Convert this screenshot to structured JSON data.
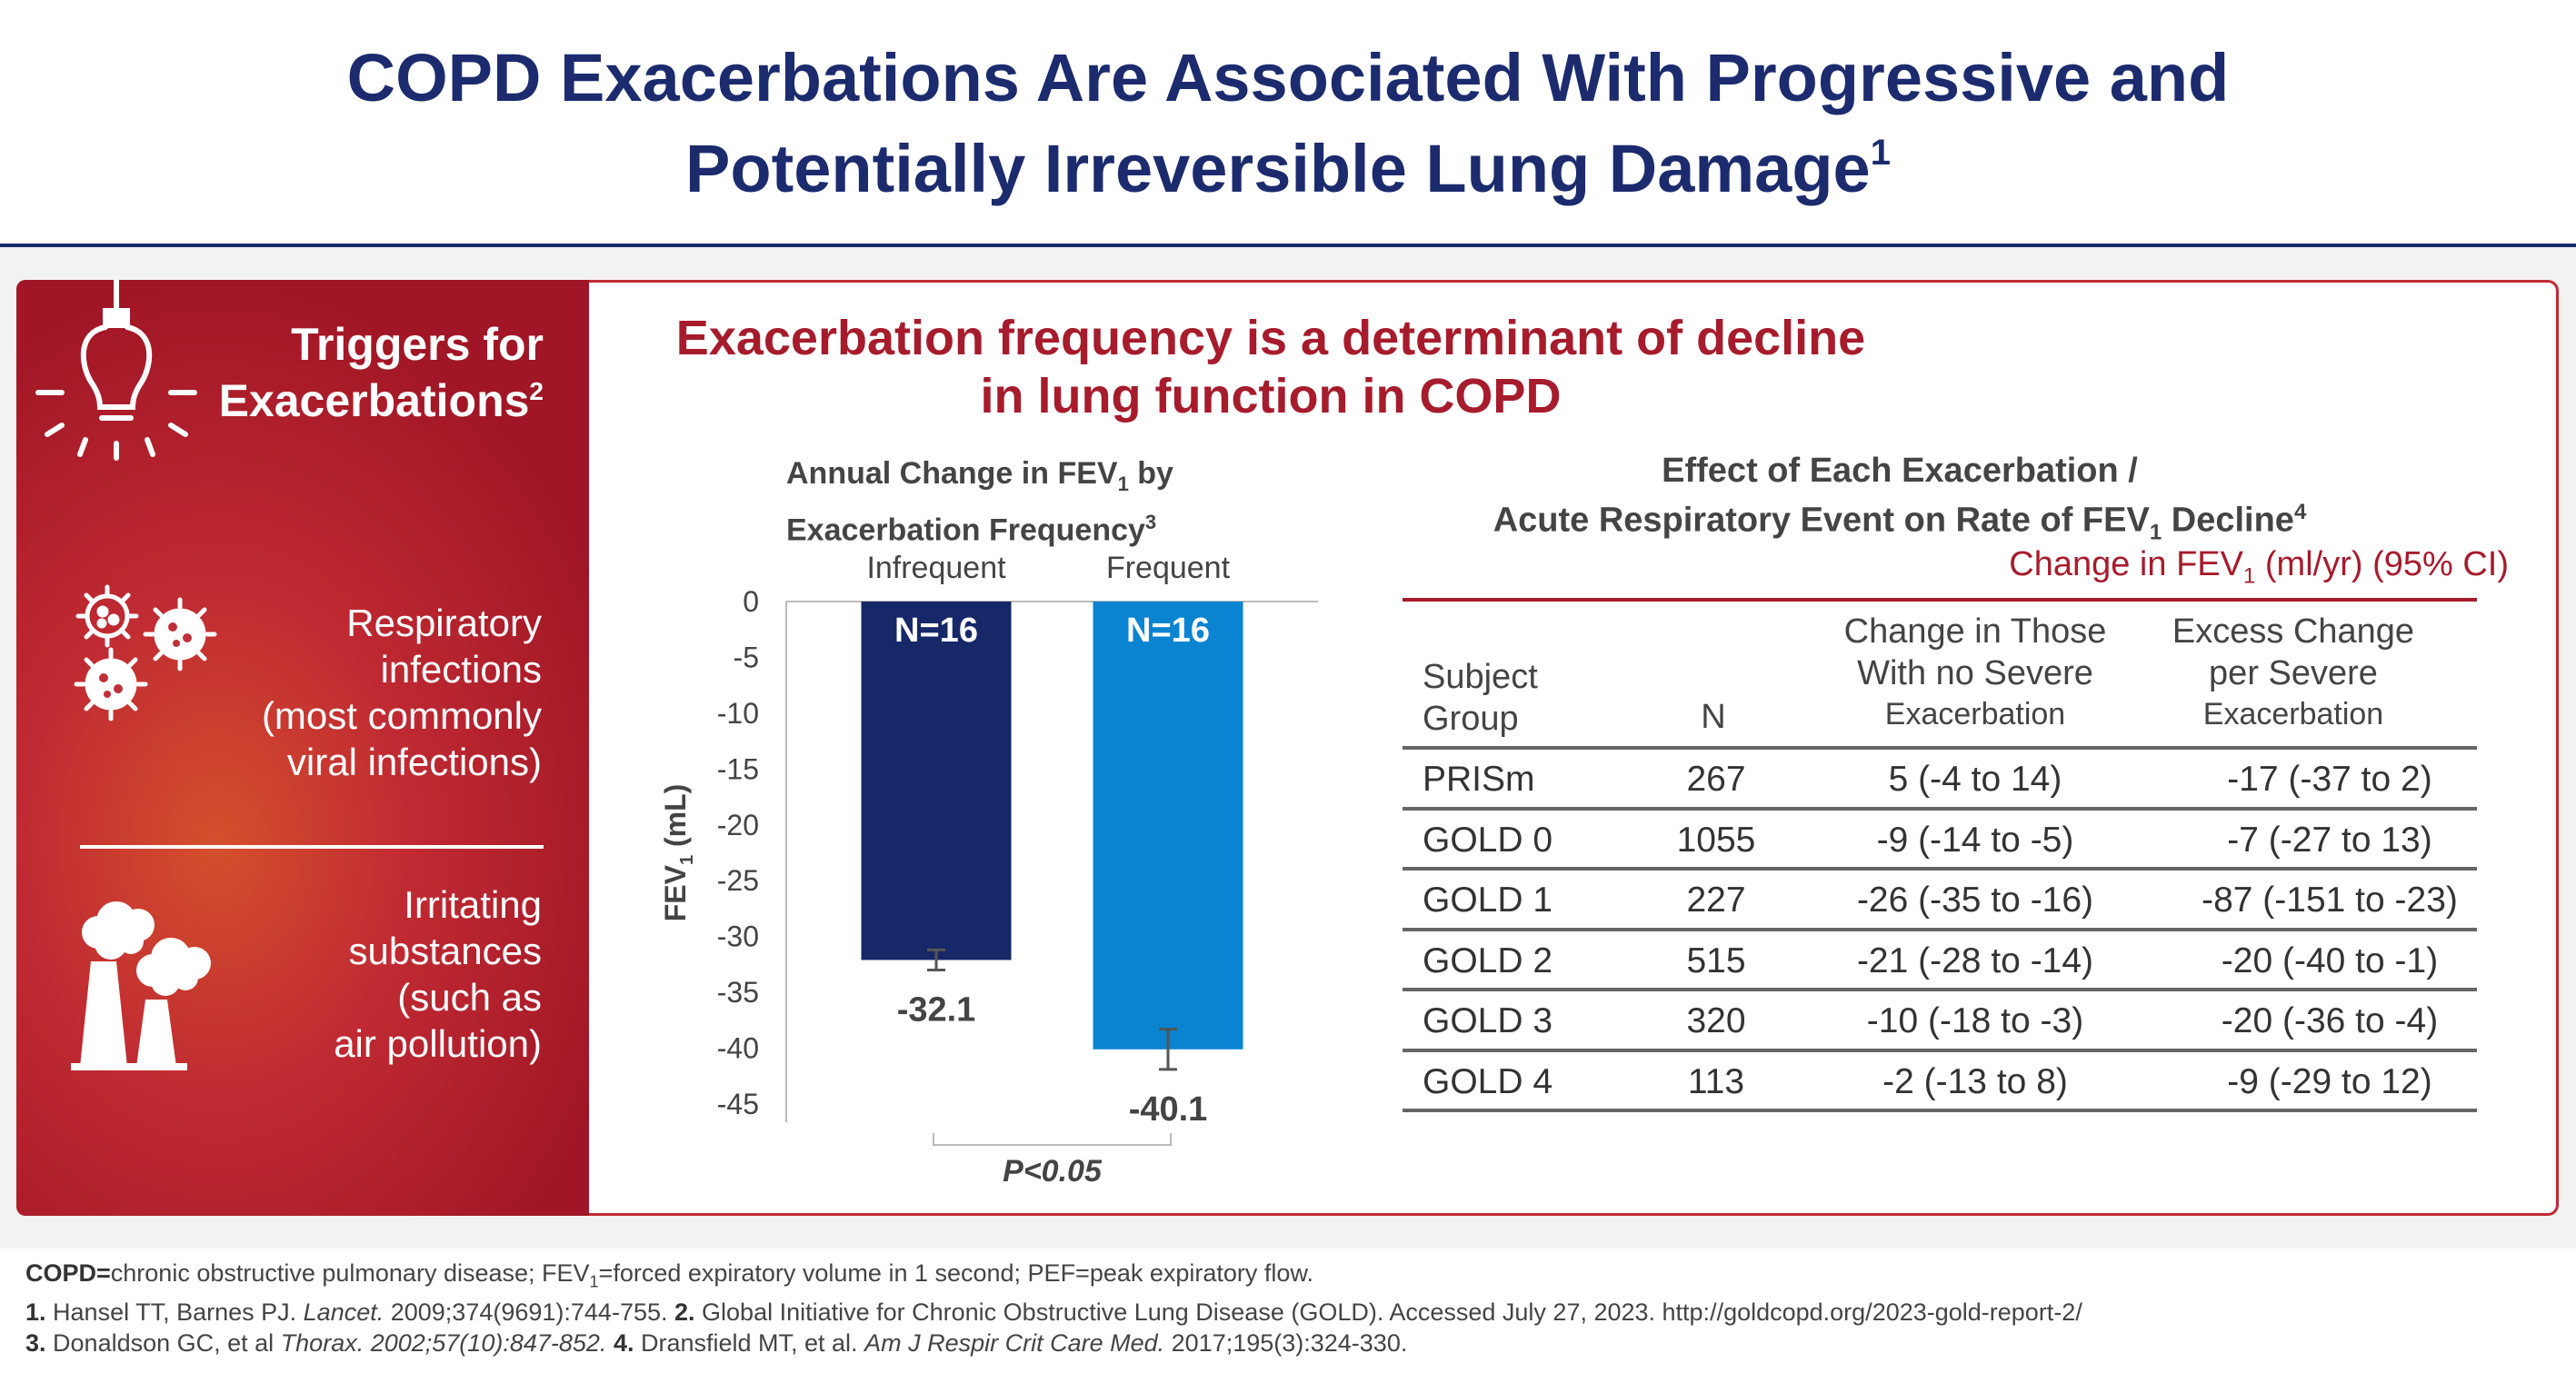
{
  "header": {
    "title_line1": "COPD Exacerbations Are Associated With Progressive and",
    "title_line2": "Potentially Irreversible Lung Damage",
    "title_ref": "1"
  },
  "sidebar": {
    "heading_line1": "Triggers for",
    "heading_line2": "Exacerbations",
    "heading_ref": "2",
    "trigger1_lines": [
      "Respiratory",
      "infections",
      "(most commonly",
      "viral infections)"
    ],
    "trigger2_lines": [
      "Irritating",
      "substances",
      "(such as",
      "air pollution)"
    ],
    "icons": [
      "lightbulb-icon",
      "virus-icon",
      "factory-icon"
    ]
  },
  "main": {
    "title_line1": "Exacerbation frequency is a determinant of decline",
    "title_line2": "in lung function in COPD"
  },
  "chart_data": {
    "type": "bar",
    "title_part1": "Annual Change in FEV",
    "title_sub": "1",
    "title_part2": " by",
    "title_line2": "Exacerbation  Frequency",
    "title_ref": "3",
    "categories": [
      "Infrequent",
      "Frequent"
    ],
    "values": [
      -32.1,
      -40.1
    ],
    "value_labels": [
      "-32.1",
      "-40.1"
    ],
    "n_labels": [
      "N=16",
      "N=16"
    ],
    "error_low": [
      -31.2,
      -38.3
    ],
    "error_high": [
      -33.0,
      -41.9
    ],
    "ylabel": "FEV1 (mL)",
    "ylabel_main": "FEV",
    "ylabel_sub": "1",
    "ylabel_unit": " (mL)",
    "ylim": [
      -45,
      0
    ],
    "yticks": [
      0,
      -5,
      -10,
      -15,
      -20,
      -25,
      -30,
      -35,
      -40,
      -45
    ],
    "ytick_labels": [
      "0",
      "-5",
      "-10",
      "-15",
      "-20",
      "-25",
      "-30",
      "-35",
      "-40",
      "-45"
    ],
    "significance": "P<0.05",
    "colors": [
      "#172868",
      "#0a84d0"
    ]
  },
  "table": {
    "title_line1": "Effect of Each Exacerbation /",
    "title_line2_a": "Acute Respiratory Event on Rate of FEV",
    "title_line2_sub": "1",
    "title_line2_b": " Decline",
    "title_ref": "4",
    "subtitle_a": "Change in FEV",
    "subtitle_sub": "1",
    "subtitle_b": " (ml/yr) (95% CI)",
    "headers": {
      "subject_line1": "Subject",
      "subject_line2": "Group",
      "n": "N",
      "change_line1": "Change in Those",
      "change_line2": "With no Severe",
      "change_line3": "Exacerbation",
      "excess_line1": "Excess Change",
      "excess_line2": "per Severe",
      "excess_line3": "Exacerbation"
    },
    "rows": [
      {
        "group": "PRISm",
        "n": "267",
        "change": "5 (-4 to 14)",
        "excess": "-17 (-37 to 2)"
      },
      {
        "group": "GOLD 0",
        "n": "1055",
        "change": "-9 (-14 to -5)",
        "excess": "-7 (-27 to 13)"
      },
      {
        "group": "GOLD 1",
        "n": "227",
        "change": "-26 (-35 to -16)",
        "excess": "-87 (-151 to -23)"
      },
      {
        "group": "GOLD 2",
        "n": "515",
        "change": "-21 (-28 to -14)",
        "excess": "-20 (-40 to -1)"
      },
      {
        "group": "GOLD 3",
        "n": "320",
        "change": "-10 (-18 to -3)",
        "excess": "-20 (-36 to -4)"
      },
      {
        "group": "GOLD 4",
        "n": "113",
        "change": "-2 (-13 to 8)",
        "excess": "-9 (-29 to 12)"
      }
    ]
  },
  "footnotes": {
    "line1_abbr": "COPD=",
    "line1_text_a": "chronic obstructive pulmonary disease; FEV",
    "line1_sub": "1",
    "line1_text_b": "=forced expiratory volume in 1 second; PEF=peak expiratory flow.",
    "ref1_num": "1.",
    "ref1_a": " Hansel TT, Barnes PJ. ",
    "ref1_journal": "Lancet.",
    "ref1_b": " 2009;374(9691):744-755. ",
    "ref2_num": "2.",
    "ref2_text": " Global Initiative for Chronic Obstructive Lung Disease (GOLD). Accessed July 27, 2023. http://goldcopd.org/2023-gold-report-2/",
    "ref3_num": "3.",
    "ref3_a": " Donaldson GC, et al ",
    "ref3_journal": "Thorax. 2002;57(10):847-852.",
    "ref4_num": "4.",
    "ref4_a": " Dransfield MT, et al. ",
    "ref4_journal": "Am J Respir Crit Care Med.",
    "ref4_b": " 2017;195(3):324-330."
  }
}
